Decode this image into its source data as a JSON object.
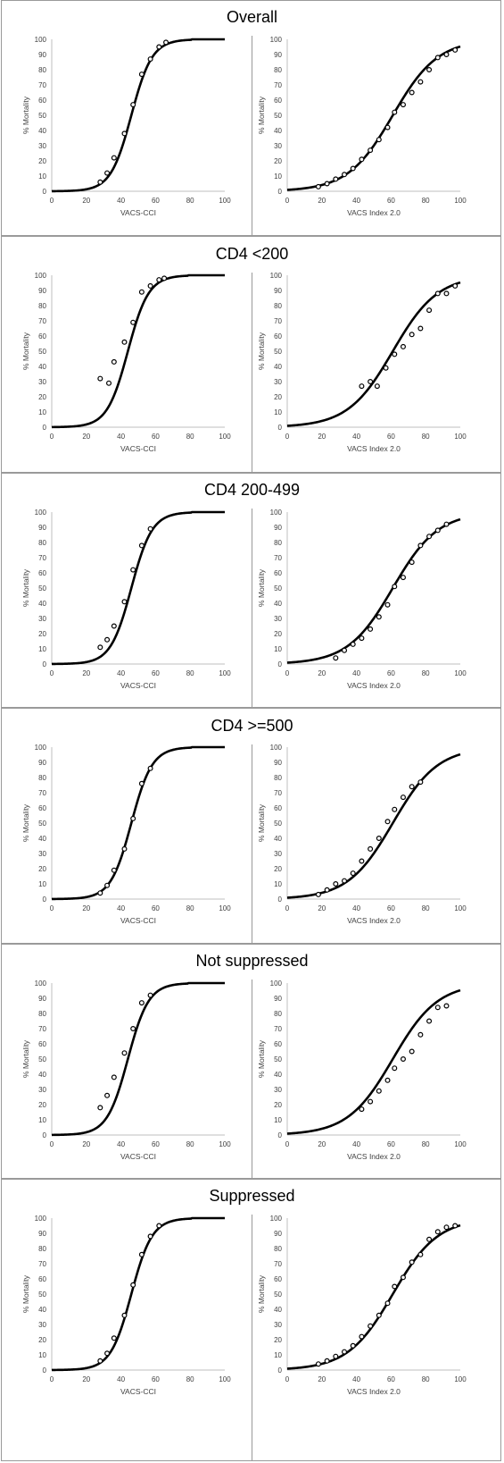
{
  "chart_data": [
    {
      "panel": "Overall",
      "title": "Overall",
      "charts": [
        {
          "type": "scatter",
          "xlabel": "VACS-CCI",
          "ylabel": "% Mortality",
          "xlim": [
            0,
            100
          ],
          "ylim": [
            0,
            100
          ],
          "xticks": [
            0,
            20,
            40,
            60,
            80,
            100
          ],
          "yticks": [
            0,
            10,
            20,
            30,
            40,
            50,
            60,
            70,
            80,
            90,
            100
          ],
          "curve": {
            "type": "logistic",
            "midpoint": 46,
            "scale": 6,
            "cap_at": 100
          },
          "points": [
            {
              "x": 28,
              "y": 6
            },
            {
              "x": 32,
              "y": 12
            },
            {
              "x": 36,
              "y": 22
            },
            {
              "x": 42,
              "y": 38
            },
            {
              "x": 47,
              "y": 57
            },
            {
              "x": 52,
              "y": 77
            },
            {
              "x": 57,
              "y": 87
            },
            {
              "x": 62,
              "y": 95
            },
            {
              "x": 66,
              "y": 98
            }
          ]
        },
        {
          "type": "scatter",
          "xlabel": "VACS Index 2.0",
          "ylabel": "% Mortality",
          "xlim": [
            0,
            100
          ],
          "ylim": [
            0,
            100
          ],
          "xticks": [
            0,
            20,
            40,
            60,
            80,
            100
          ],
          "yticks": [
            0,
            10,
            20,
            30,
            40,
            50,
            60,
            70,
            80,
            90,
            100
          ],
          "curve": {
            "type": "logistic",
            "midpoint": 61,
            "scale": 13
          },
          "points": [
            {
              "x": 18,
              "y": 3
            },
            {
              "x": 23,
              "y": 5
            },
            {
              "x": 28,
              "y": 8
            },
            {
              "x": 33,
              "y": 11
            },
            {
              "x": 38,
              "y": 15
            },
            {
              "x": 43,
              "y": 21
            },
            {
              "x": 48,
              "y": 27
            },
            {
              "x": 53,
              "y": 34
            },
            {
              "x": 58,
              "y": 42
            },
            {
              "x": 62,
              "y": 52
            },
            {
              "x": 67,
              "y": 57
            },
            {
              "x": 72,
              "y": 65
            },
            {
              "x": 77,
              "y": 72
            },
            {
              "x": 82,
              "y": 80
            },
            {
              "x": 87,
              "y": 88
            },
            {
              "x": 92,
              "y": 90
            },
            {
              "x": 97,
              "y": 93
            }
          ]
        }
      ]
    },
    {
      "panel": "CD4 <200",
      "title": "CD4 <200",
      "charts": [
        {
          "type": "scatter",
          "xlabel": "VACS-CCI",
          "ylabel": "% Mortality",
          "xlim": [
            0,
            100
          ],
          "ylim": [
            0,
            100
          ],
          "xticks": [
            0,
            20,
            40,
            60,
            80,
            100
          ],
          "yticks": [
            0,
            10,
            20,
            30,
            40,
            50,
            60,
            70,
            80,
            90,
            100
          ],
          "curve": {
            "type": "logistic",
            "midpoint": 44,
            "scale": 6,
            "cap_at": 100
          },
          "points": [
            {
              "x": 28,
              "y": 32
            },
            {
              "x": 33,
              "y": 29
            },
            {
              "x": 36,
              "y": 43
            },
            {
              "x": 42,
              "y": 56
            },
            {
              "x": 47,
              "y": 69
            },
            {
              "x": 52,
              "y": 89
            },
            {
              "x": 57,
              "y": 93
            },
            {
              "x": 62,
              "y": 97
            },
            {
              "x": 65,
              "y": 98
            }
          ]
        },
        {
          "type": "scatter",
          "xlabel": "VACS Index 2.0",
          "ylabel": "% Mortality",
          "xlim": [
            0,
            100
          ],
          "ylim": [
            0,
            100
          ],
          "xticks": [
            0,
            20,
            40,
            60,
            80,
            100
          ],
          "yticks": [
            0,
            10,
            20,
            30,
            40,
            50,
            60,
            70,
            80,
            90,
            100
          ],
          "curve": {
            "type": "logistic",
            "midpoint": 61,
            "scale": 13
          },
          "points": [
            {
              "x": 43,
              "y": 27
            },
            {
              "x": 48,
              "y": 30
            },
            {
              "x": 52,
              "y": 27
            },
            {
              "x": 57,
              "y": 39
            },
            {
              "x": 62,
              "y": 48
            },
            {
              "x": 67,
              "y": 53
            },
            {
              "x": 72,
              "y": 61
            },
            {
              "x": 77,
              "y": 65
            },
            {
              "x": 82,
              "y": 77
            },
            {
              "x": 87,
              "y": 88
            },
            {
              "x": 92,
              "y": 88
            },
            {
              "x": 97,
              "y": 93
            }
          ]
        }
      ]
    },
    {
      "panel": "CD4 200-499",
      "title": "CD4 200-499",
      "charts": [
        {
          "type": "scatter",
          "xlabel": "VACS-CCI",
          "ylabel": "% Mortality",
          "xlim": [
            0,
            100
          ],
          "ylim": [
            0,
            100
          ],
          "xticks": [
            0,
            20,
            40,
            60,
            80,
            100
          ],
          "yticks": [
            0,
            10,
            20,
            30,
            40,
            50,
            60,
            70,
            80,
            90,
            100
          ],
          "curve": {
            "type": "logistic",
            "midpoint": 46,
            "scale": 6,
            "cap_at": 100
          },
          "points": [
            {
              "x": 28,
              "y": 11
            },
            {
              "x": 32,
              "y": 16
            },
            {
              "x": 36,
              "y": 25
            },
            {
              "x": 42,
              "y": 41
            },
            {
              "x": 47,
              "y": 62
            },
            {
              "x": 52,
              "y": 78
            },
            {
              "x": 57,
              "y": 89
            }
          ]
        },
        {
          "type": "scatter",
          "xlabel": "VACS Index 2.0",
          "ylabel": "% Mortality",
          "xlim": [
            0,
            100
          ],
          "ylim": [
            0,
            100
          ],
          "xticks": [
            0,
            20,
            40,
            60,
            80,
            100
          ],
          "yticks": [
            0,
            10,
            20,
            30,
            40,
            50,
            60,
            70,
            80,
            90,
            100
          ],
          "curve": {
            "type": "logistic",
            "midpoint": 61,
            "scale": 13
          },
          "points": [
            {
              "x": 28,
              "y": 4
            },
            {
              "x": 33,
              "y": 9
            },
            {
              "x": 38,
              "y": 13
            },
            {
              "x": 43,
              "y": 17
            },
            {
              "x": 48,
              "y": 23
            },
            {
              "x": 53,
              "y": 31
            },
            {
              "x": 58,
              "y": 39
            },
            {
              "x": 62,
              "y": 51
            },
            {
              "x": 67,
              "y": 57
            },
            {
              "x": 72,
              "y": 67
            },
            {
              "x": 77,
              "y": 78
            },
            {
              "x": 82,
              "y": 84
            },
            {
              "x": 87,
              "y": 88
            },
            {
              "x": 92,
              "y": 92
            }
          ]
        }
      ]
    },
    {
      "panel": "CD4 >=500",
      "title": "CD4 >=500",
      "charts": [
        {
          "type": "scatter",
          "xlabel": "VACS-CCI",
          "ylabel": "% Mortality",
          "xlim": [
            0,
            100
          ],
          "ylim": [
            0,
            100
          ],
          "xticks": [
            0,
            20,
            40,
            60,
            80,
            100
          ],
          "yticks": [
            0,
            10,
            20,
            30,
            40,
            50,
            60,
            70,
            80,
            90,
            100
          ],
          "curve": {
            "type": "logistic",
            "midpoint": 46,
            "scale": 6,
            "cap_at": 100
          },
          "points": [
            {
              "x": 28,
              "y": 4
            },
            {
              "x": 32,
              "y": 9
            },
            {
              "x": 36,
              "y": 19
            },
            {
              "x": 42,
              "y": 33
            },
            {
              "x": 47,
              "y": 53
            },
            {
              "x": 52,
              "y": 76
            },
            {
              "x": 57,
              "y": 86
            }
          ]
        },
        {
          "type": "scatter",
          "xlabel": "VACS Index 2.0",
          "ylabel": "% Mortality",
          "xlim": [
            0,
            100
          ],
          "ylim": [
            0,
            100
          ],
          "xticks": [
            0,
            20,
            40,
            60,
            80,
            100
          ],
          "yticks": [
            0,
            10,
            20,
            30,
            40,
            50,
            60,
            70,
            80,
            90,
            100
          ],
          "curve": {
            "type": "logistic",
            "midpoint": 61,
            "scale": 13
          },
          "points": [
            {
              "x": 18,
              "y": 3
            },
            {
              "x": 23,
              "y": 6
            },
            {
              "x": 28,
              "y": 10
            },
            {
              "x": 33,
              "y": 12
            },
            {
              "x": 38,
              "y": 17
            },
            {
              "x": 43,
              "y": 25
            },
            {
              "x": 48,
              "y": 33
            },
            {
              "x": 53,
              "y": 40
            },
            {
              "x": 58,
              "y": 51
            },
            {
              "x": 62,
              "y": 59
            },
            {
              "x": 67,
              "y": 67
            },
            {
              "x": 72,
              "y": 74
            },
            {
              "x": 77,
              "y": 77
            }
          ]
        }
      ]
    },
    {
      "panel": "Not suppressed",
      "title": "Not suppressed",
      "charts": [
        {
          "type": "scatter",
          "xlabel": "VACS-CCI",
          "ylabel": "% Mortality",
          "xlim": [
            0,
            100
          ],
          "ylim": [
            0,
            100
          ],
          "xticks": [
            0,
            20,
            40,
            60,
            80,
            100
          ],
          "yticks": [
            0,
            10,
            20,
            30,
            40,
            50,
            60,
            70,
            80,
            90,
            100
          ],
          "curve": {
            "type": "logistic",
            "midpoint": 44,
            "scale": 6,
            "cap_at": 100
          },
          "points": [
            {
              "x": 28,
              "y": 18
            },
            {
              "x": 32,
              "y": 26
            },
            {
              "x": 36,
              "y": 38
            },
            {
              "x": 42,
              "y": 54
            },
            {
              "x": 47,
              "y": 70
            },
            {
              "x": 52,
              "y": 87
            },
            {
              "x": 57,
              "y": 92
            }
          ]
        },
        {
          "type": "scatter",
          "xlabel": "VACS Index 2.0",
          "ylabel": "% Mortality",
          "xlim": [
            0,
            100
          ],
          "ylim": [
            0,
            100
          ],
          "xticks": [
            0,
            20,
            40,
            60,
            80,
            100
          ],
          "yticks": [
            0,
            10,
            20,
            30,
            40,
            50,
            60,
            70,
            80,
            90,
            100
          ],
          "curve": {
            "type": "logistic",
            "midpoint": 61,
            "scale": 13
          },
          "points": [
            {
              "x": 43,
              "y": 17
            },
            {
              "x": 48,
              "y": 22
            },
            {
              "x": 53,
              "y": 29
            },
            {
              "x": 58,
              "y": 36
            },
            {
              "x": 62,
              "y": 44
            },
            {
              "x": 67,
              "y": 50
            },
            {
              "x": 72,
              "y": 55
            },
            {
              "x": 77,
              "y": 66
            },
            {
              "x": 82,
              "y": 75
            },
            {
              "x": 87,
              "y": 84
            },
            {
              "x": 92,
              "y": 85
            }
          ]
        }
      ]
    },
    {
      "panel": "Suppressed",
      "title": "Suppressed",
      "charts": [
        {
          "type": "scatter",
          "xlabel": "VACS-CCI",
          "ylabel": "% Mortality",
          "xlim": [
            0,
            100
          ],
          "ylim": [
            0,
            100
          ],
          "xticks": [
            0,
            20,
            40,
            60,
            80,
            100
          ],
          "yticks": [
            0,
            10,
            20,
            30,
            40,
            50,
            60,
            70,
            80,
            90,
            100
          ],
          "curve": {
            "type": "logistic",
            "midpoint": 46,
            "scale": 6,
            "cap_at": 100
          },
          "points": [
            {
              "x": 28,
              "y": 6
            },
            {
              "x": 32,
              "y": 11
            },
            {
              "x": 36,
              "y": 21
            },
            {
              "x": 42,
              "y": 36
            },
            {
              "x": 47,
              "y": 56
            },
            {
              "x": 52,
              "y": 76
            },
            {
              "x": 57,
              "y": 88
            },
            {
              "x": 62,
              "y": 95
            }
          ]
        },
        {
          "type": "scatter",
          "xlabel": "VACS Index 2.0",
          "ylabel": "% Mortality",
          "xlim": [
            0,
            100
          ],
          "ylim": [
            0,
            100
          ],
          "xticks": [
            0,
            20,
            40,
            60,
            80,
            100
          ],
          "yticks": [
            0,
            10,
            20,
            30,
            40,
            50,
            60,
            70,
            80,
            90,
            100
          ],
          "curve": {
            "type": "logistic",
            "midpoint": 61,
            "scale": 13
          },
          "points": [
            {
              "x": 18,
              "y": 4
            },
            {
              "x": 23,
              "y": 6
            },
            {
              "x": 28,
              "y": 9
            },
            {
              "x": 33,
              "y": 12
            },
            {
              "x": 38,
              "y": 16
            },
            {
              "x": 43,
              "y": 22
            },
            {
              "x": 48,
              "y": 29
            },
            {
              "x": 53,
              "y": 36
            },
            {
              "x": 58,
              "y": 44
            },
            {
              "x": 62,
              "y": 55
            },
            {
              "x": 67,
              "y": 61
            },
            {
              "x": 72,
              "y": 71
            },
            {
              "x": 77,
              "y": 76
            },
            {
              "x": 82,
              "y": 86
            },
            {
              "x": 87,
              "y": 91
            },
            {
              "x": 92,
              "y": 94
            },
            {
              "x": 97,
              "y": 95
            }
          ]
        }
      ]
    }
  ]
}
